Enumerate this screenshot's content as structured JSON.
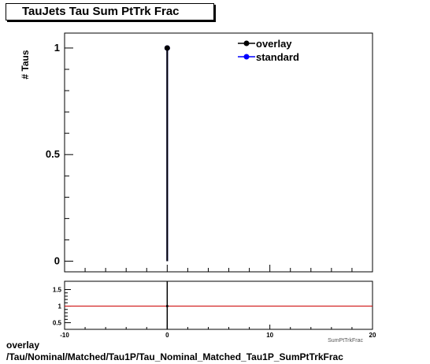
{
  "chart_data": [
    {
      "type": "scatter",
      "title": "TauJets Tau Sum PtTrk Frac",
      "ylabel": "# Taus",
      "xlabel": "SumPtTrkFrac",
      "xlim": [
        -10,
        20
      ],
      "ylim": [
        -0.05,
        1.07
      ],
      "y_ticks": [
        0,
        0.5,
        1
      ],
      "legend_position": "top-right",
      "series": [
        {
          "name": "overlay",
          "color": "#000000",
          "x": [
            0
          ],
          "y": [
            1
          ]
        },
        {
          "name": "standard",
          "color": "#0000ff",
          "x": [
            0
          ],
          "y": [
            1
          ]
        }
      ]
    },
    {
      "type": "line",
      "xlim": [
        -10,
        20
      ],
      "ylim": [
        0.3,
        1.75
      ],
      "x_ticks": [
        -10,
        0,
        10,
        20
      ],
      "y_ticks": [
        0.5,
        1,
        1.5
      ],
      "reference_line": {
        "y": 1,
        "color": "#cc0000"
      },
      "series": [
        {
          "x": [
            0
          ],
          "y": [
            1
          ]
        }
      ]
    }
  ],
  "footer": {
    "line1": "overlay",
    "line2": "/Tau/Nominal/Matched/Tau1P/Tau_Nominal_Matched_Tau1P_SumPtTrkFrac"
  }
}
